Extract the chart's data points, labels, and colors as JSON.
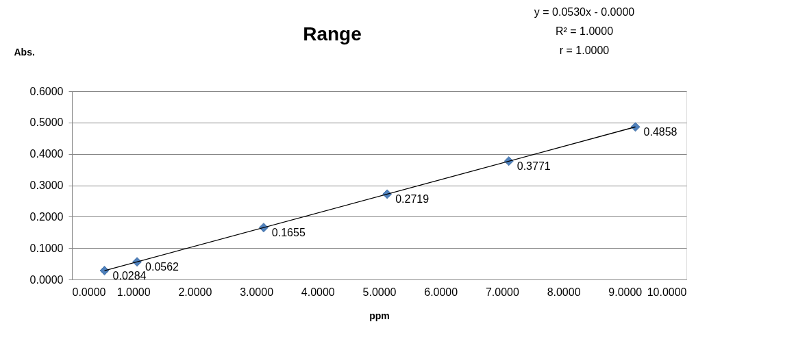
{
  "chart_data": {
    "type": "scatter",
    "title": "Range",
    "xlabel": "ppm",
    "ylabel": "Abs.",
    "annotations": [
      "y = 0.0530x - 0.0000",
      "R² = 1.0000",
      "r = 1.0000"
    ],
    "series": [
      {
        "color": "#4f81bd",
        "x": [
          0.53,
          1.06,
          3.12,
          5.13,
          7.11,
          9.17
        ],
        "values": [
          0.0284,
          0.0562,
          0.1655,
          0.2719,
          0.3771,
          0.4858
        ],
        "marker": "diamond",
        "data_labels": true
      },
      {
        "type": "line",
        "color": "#000000",
        "x": [
          0.53,
          9.17
        ],
        "values": [
          0.028,
          0.486
        ],
        "line_style": "solid"
      }
    ],
    "xlim": [
      0,
      10
    ],
    "ylim": [
      0,
      0.6
    ],
    "xticks": [
      {
        "value": 0,
        "label": "0.0000"
      },
      {
        "value": 1,
        "label": "1.0000"
      },
      {
        "value": 2,
        "label": "2.0000"
      },
      {
        "value": 3,
        "label": "3.0000"
      },
      {
        "value": 4,
        "label": "4.0000"
      },
      {
        "value": 5,
        "label": "5.0000"
      },
      {
        "value": 6,
        "label": "6.0000"
      },
      {
        "value": 7,
        "label": "7.0000"
      },
      {
        "value": 8,
        "label": "8.0000"
      },
      {
        "value": 9,
        "label": "9.0000"
      },
      {
        "value": 10,
        "label": "10.0000"
      }
    ],
    "yticks": [
      {
        "value": 0,
        "label": "0.0000"
      },
      {
        "value": 0.1,
        "label": "0.1000"
      },
      {
        "value": 0.2,
        "label": "0.2000"
      },
      {
        "value": 0.3,
        "label": "0.3000"
      },
      {
        "value": 0.4,
        "label": "0.4000"
      },
      {
        "value": 0.5,
        "label": "0.5000"
      },
      {
        "value": 0.6,
        "label": "0.6000"
      }
    ],
    "grid": "y"
  }
}
